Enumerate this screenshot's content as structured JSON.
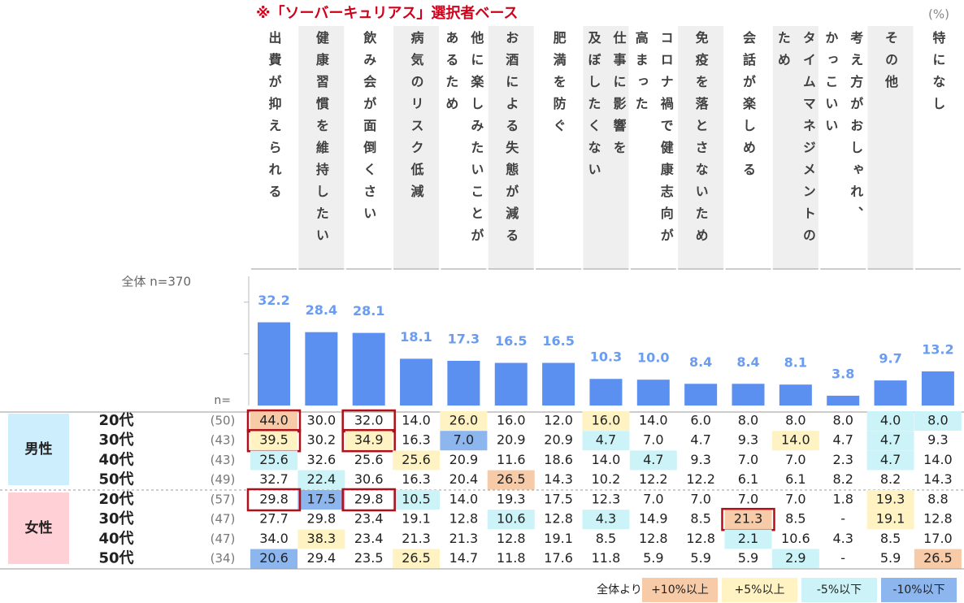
{
  "chart_data": {
    "type": "bar",
    "title": "※「ソーバーキュリアス」選択者ベース",
    "unit": "(%)",
    "total_label": "全体 n=370",
    "n_label": "n=",
    "categories": [
      "出費が抑えられる",
      "健康習慣を維持したい",
      "飲み会が面倒くさい",
      "病気のリスク低減",
      "他に楽しみたいことが\nあるため",
      "お酒による失態が減る",
      "肥満を防ぐ",
      "仕事に影響を\n及ぼしたくない",
      "コロナ禍で健康志向が\n高まった",
      "免疫を落とさないため",
      "会話が楽しめる",
      "タイムマネジメントの\nため",
      "考え方がおしゃれ、\nかっこいい",
      "その他",
      "特になし"
    ],
    "values": [
      32.2,
      28.4,
      28.1,
      18.1,
      17.3,
      16.5,
      16.5,
      10.3,
      10.0,
      8.4,
      8.4,
      8.1,
      3.8,
      9.7,
      13.2
    ],
    "value_labels": [
      "32.2",
      "28.4",
      "28.1",
      "18.1",
      "17.3",
      "16.5",
      "16.5",
      "10.3",
      "10.0",
      "8.4",
      "8.4",
      "8.1",
      "3.8",
      "9.7",
      "13.2"
    ],
    "color": "#5b8ff0",
    "label_color": "#6a9cf0",
    "ylim": [
      0,
      50
    ],
    "yticks": [
      20,
      40
    ],
    "shaded_columns": [
      1,
      3,
      5,
      7,
      9,
      11,
      13
    ]
  },
  "table": {
    "groups": [
      {
        "name": "男性",
        "color": "#cdeefc",
        "rows": [
          {
            "age": "20代",
            "n": "(50)",
            "cells": [
              "44.0",
              "30.0",
              "32.0",
              "14.0",
              "26.0",
              "16.0",
              "12.0",
              "16.0",
              "14.0",
              "6.0",
              "8.0",
              "8.0",
              "8.0",
              "4.0",
              "8.0"
            ],
            "shade": [
              0,
              null,
              null,
              null,
              1,
              null,
              null,
              1,
              null,
              null,
              null,
              null,
              null,
              2,
              2
            ],
            "boxed": [
              0,
              2
            ]
          },
          {
            "age": "30代",
            "n": "(43)",
            "cells": [
              "39.5",
              "30.2",
              "34.9",
              "16.3",
              "7.0",
              "20.9",
              "20.9",
              "4.7",
              "7.0",
              "4.7",
              "9.3",
              "14.0",
              "4.7",
              "4.7",
              "9.3"
            ],
            "shade": [
              1,
              null,
              1,
              null,
              3,
              null,
              null,
              2,
              null,
              null,
              null,
              1,
              null,
              2,
              null
            ],
            "boxed": [
              0,
              2
            ]
          },
          {
            "age": "40代",
            "n": "(43)",
            "cells": [
              "25.6",
              "32.6",
              "25.6",
              "25.6",
              "20.9",
              "11.6",
              "18.6",
              "14.0",
              "4.7",
              "9.3",
              "7.0",
              "7.0",
              "2.3",
              "4.7",
              "14.0"
            ],
            "shade": [
              2,
              null,
              null,
              1,
              null,
              null,
              null,
              null,
              2,
              null,
              null,
              null,
              null,
              2,
              null
            ],
            "boxed": []
          },
          {
            "age": "50代",
            "n": "(49)",
            "cells": [
              "32.7",
              "22.4",
              "30.6",
              "16.3",
              "20.4",
              "26.5",
              "14.3",
              "10.2",
              "12.2",
              "12.2",
              "6.1",
              "6.1",
              "8.2",
              "8.2",
              "14.3"
            ],
            "shade": [
              null,
              2,
              null,
              null,
              null,
              0,
              null,
              null,
              null,
              null,
              null,
              null,
              null,
              null,
              null
            ],
            "boxed": []
          }
        ]
      },
      {
        "name": "女性",
        "color": "#ffd1d6",
        "rows": [
          {
            "age": "20代",
            "n": "(57)",
            "cells": [
              "29.8",
              "17.5",
              "29.8",
              "10.5",
              "14.0",
              "19.3",
              "17.5",
              "12.3",
              "7.0",
              "7.0",
              "7.0",
              "7.0",
              "1.8",
              "19.3",
              "8.8"
            ],
            "shade": [
              null,
              3,
              null,
              2,
              null,
              null,
              null,
              null,
              null,
              null,
              null,
              null,
              null,
              1,
              null
            ],
            "boxed": [
              0,
              2
            ]
          },
          {
            "age": "30代",
            "n": "(47)",
            "cells": [
              "27.7",
              "29.8",
              "23.4",
              "19.1",
              "12.8",
              "10.6",
              "12.8",
              "4.3",
              "14.9",
              "8.5",
              "21.3",
              "8.5",
              "-",
              "19.1",
              "12.8"
            ],
            "shade": [
              null,
              null,
              null,
              null,
              null,
              2,
              null,
              2,
              null,
              null,
              0,
              null,
              null,
              1,
              null
            ],
            "boxed": [
              10
            ]
          },
          {
            "age": "40代",
            "n": "(47)",
            "cells": [
              "34.0",
              "38.3",
              "23.4",
              "21.3",
              "21.3",
              "12.8",
              "19.1",
              "8.5",
              "12.8",
              "12.8",
              "2.1",
              "10.6",
              "4.3",
              "8.5",
              "17.0"
            ],
            "shade": [
              null,
              1,
              null,
              null,
              null,
              null,
              null,
              null,
              null,
              null,
              2,
              null,
              null,
              null,
              null
            ],
            "boxed": []
          },
          {
            "age": "50代",
            "n": "(34)",
            "cells": [
              "20.6",
              "29.4",
              "23.5",
              "26.5",
              "14.7",
              "11.8",
              "17.6",
              "11.8",
              "5.9",
              "5.9",
              "5.9",
              "2.9",
              "-",
              "5.9",
              "26.5"
            ],
            "shade": [
              3,
              null,
              null,
              1,
              null,
              null,
              null,
              null,
              null,
              null,
              null,
              2,
              null,
              null,
              0
            ],
            "boxed": []
          }
        ]
      }
    ]
  },
  "legend": {
    "label": "全体より",
    "items": [
      {
        "label": "+10%以上",
        "color": "#f8cba8"
      },
      {
        "label": "+5%以上",
        "color": "#fff3c4"
      },
      {
        "label": "-5%以下",
        "color": "#ccf4f8"
      },
      {
        "label": "-10%以下",
        "color": "#8db6ef"
      }
    ]
  }
}
